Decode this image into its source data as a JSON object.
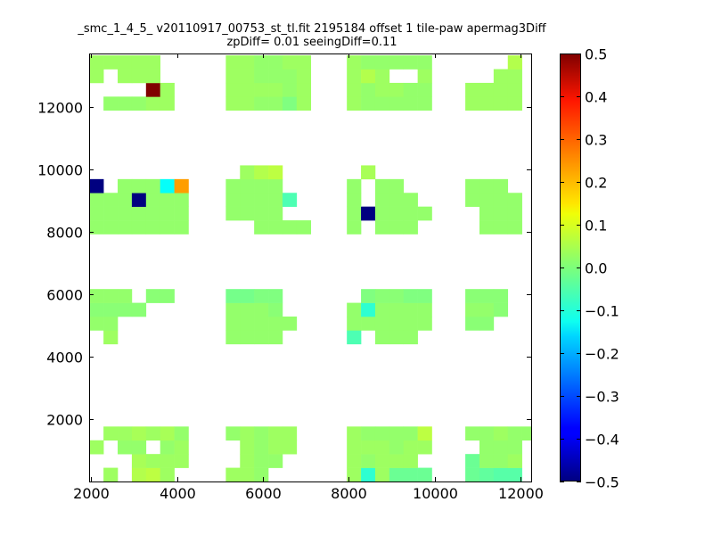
{
  "chart_data": {
    "type": "heatmap",
    "title_lines": [
      "_smc_1_4_5_ v20110917_00753_st_tl.fit 2195184 offset 1 tile-paw apermag3Diff",
      "zpDiff= 0.01 seeingDiff=0.11"
    ],
    "xlabel": "",
    "ylabel": "",
    "xlim": [
      1950,
      12250
    ],
    "ylim": [
      0,
      13700
    ],
    "xticks": [
      2000,
      4000,
      6000,
      8000,
      10000,
      12000
    ],
    "yticks": [
      2000,
      4000,
      6000,
      8000,
      10000,
      12000
    ],
    "colorbar": {
      "min": -0.5,
      "max": 0.5,
      "ticks": [
        0.5,
        0.4,
        0.3,
        0.2,
        0.1,
        0.0,
        -0.1,
        -0.2,
        -0.3,
        -0.4,
        -0.5
      ],
      "tick_labels": [
        "0.5",
        "0.4",
        "0.3",
        "0.2",
        "0.1",
        "0.0",
        "−0.1",
        "−0.2",
        "−0.3",
        "−0.4",
        "−0.5"
      ],
      "colormap": "jet"
    },
    "cell_size": [
      330,
      440
    ],
    "columns": [
      2120,
      2450,
      2780,
      3110,
      3440,
      3770,
      4100,
      5300,
      5630,
      5960,
      6290,
      6620,
      6950,
      8120,
      8450,
      8780,
      9110,
      9440,
      9770,
      10880,
      11210,
      11540,
      11870,
      12200
    ],
    "rows": [
      220,
      660,
      1100,
      1540,
      1980,
      4620,
      5060,
      5500,
      5940,
      8140,
      8580,
      9020,
      9460,
      9900,
      12100,
      12540,
      12980,
      13420
    ],
    "cells_note": "value per grid cell; rows listed bottom to top; null = no data",
    "cells": [
      [
        null,
        0.03,
        null,
        0.05,
        0.06,
        0.03,
        null,
        0.03,
        0.03,
        0.02,
        null,
        null,
        null,
        0.03,
        -0.08,
        0.03,
        -0.02,
        -0.02,
        -0.02,
        -0.02,
        -0.03,
        -0.04,
        -0.04,
        null
      ],
      [
        null,
        null,
        null,
        0.04,
        0.03,
        0.03,
        0.03,
        null,
        0.03,
        0.02,
        0.02,
        null,
        null,
        0.03,
        0.02,
        0.03,
        0.03,
        0.03,
        null,
        -0.02,
        0.02,
        0.02,
        0.03,
        null
      ],
      [
        0.03,
        null,
        0.02,
        0.02,
        null,
        0.02,
        0.03,
        null,
        0.03,
        0.02,
        0.03,
        0.03,
        null,
        0.03,
        0.03,
        0.03,
        0.02,
        0.03,
        0.03,
        null,
        0.02,
        0.02,
        0.02,
        null
      ],
      [
        null,
        0.03,
        0.03,
        0.04,
        0.03,
        0.04,
        0.02,
        0.02,
        0.03,
        0.02,
        0.03,
        0.03,
        null,
        0.03,
        0.02,
        0.02,
        0.02,
        0.02,
        0.06,
        0.02,
        0.02,
        0.03,
        0.02,
        0.02
      ],
      [
        null,
        null,
        null,
        null,
        null,
        null,
        null,
        null,
        null,
        null,
        null,
        null,
        null,
        null,
        null,
        null,
        null,
        null,
        null,
        null,
        null,
        null,
        null,
        null
      ],
      [
        null,
        0.03,
        null,
        null,
        null,
        null,
        null,
        0.02,
        0.02,
        0.02,
        0.02,
        null,
        null,
        -0.05,
        null,
        0.02,
        0.02,
        0.02,
        null,
        null,
        null,
        null,
        null,
        null
      ],
      [
        0.02,
        0.02,
        null,
        null,
        null,
        null,
        null,
        0.02,
        0.02,
        0.02,
        0.02,
        0.02,
        null,
        0.02,
        0.02,
        0.02,
        0.02,
        0.02,
        0.02,
        0.01,
        0.01,
        null,
        null,
        null
      ],
      [
        0.01,
        0.01,
        0.01,
        0.01,
        null,
        null,
        null,
        0.02,
        0.02,
        0.02,
        0.01,
        null,
        null,
        0.02,
        -0.08,
        0.02,
        0.02,
        0.02,
        0.02,
        0.02,
        0.02,
        0.01,
        null,
        null
      ],
      [
        0.02,
        0.02,
        0.02,
        null,
        0.01,
        0.01,
        null,
        -0.01,
        -0.01,
        0.0,
        0.0,
        null,
        null,
        null,
        0.0,
        0.01,
        0.01,
        0.0,
        0.0,
        0.01,
        0.01,
        0.01,
        null,
        null
      ],
      [
        0.02,
        0.02,
        0.02,
        0.02,
        0.02,
        0.02,
        0.02,
        null,
        null,
        0.02,
        0.02,
        0.02,
        0.02,
        0.02,
        null,
        0.02,
        0.02,
        0.02,
        null,
        null,
        0.02,
        0.02,
        0.02,
        null
      ],
      [
        0.02,
        0.02,
        0.02,
        0.02,
        0.02,
        0.02,
        0.02,
        0.02,
        0.02,
        0.02,
        0.02,
        null,
        null,
        0.02,
        -0.5,
        0.02,
        0.02,
        0.02,
        0.02,
        null,
        0.02,
        0.02,
        0.02,
        null
      ],
      [
        0.02,
        0.02,
        0.02,
        -0.5,
        0.02,
        0.02,
        0.02,
        0.02,
        0.02,
        0.02,
        0.02,
        -0.05,
        null,
        0.02,
        null,
        0.02,
        0.02,
        0.02,
        null,
        0.02,
        0.02,
        0.02,
        0.02,
        null
      ],
      [
        -0.5,
        null,
        0.02,
        0.02,
        0.02,
        -0.12,
        0.22,
        0.02,
        0.02,
        0.02,
        0.02,
        null,
        null,
        0.02,
        null,
        0.02,
        0.02,
        null,
        null,
        0.02,
        0.02,
        0.02,
        null,
        null
      ],
      [
        null,
        null,
        null,
        null,
        null,
        null,
        null,
        null,
        0.03,
        0.05,
        0.06,
        null,
        null,
        null,
        0.04,
        null,
        null,
        null,
        null,
        null,
        null,
        null,
        null,
        null
      ],
      [
        null,
        0.02,
        0.02,
        0.02,
        0.03,
        0.03,
        null,
        0.03,
        0.03,
        0.02,
        0.02,
        0.0,
        0.03,
        0.03,
        0.02,
        0.02,
        0.02,
        0.02,
        0.02,
        0.03,
        0.03,
        0.03,
        0.03,
        null
      ],
      [
        null,
        null,
        null,
        null,
        0.5,
        0.03,
        null,
        0.03,
        0.03,
        0.03,
        0.03,
        0.02,
        0.03,
        0.03,
        0.02,
        0.03,
        0.03,
        0.02,
        0.02,
        0.03,
        0.03,
        0.03,
        0.03,
        null
      ],
      [
        0.03,
        null,
        0.03,
        0.03,
        0.03,
        null,
        null,
        0.03,
        0.03,
        0.02,
        0.02,
        0.02,
        0.03,
        0.03,
        0.05,
        0.03,
        null,
        null,
        0.03,
        null,
        null,
        0.03,
        0.03,
        null
      ],
      [
        0.03,
        0.03,
        0.03,
        0.03,
        0.03,
        null,
        null,
        0.03,
        0.03,
        0.02,
        0.02,
        0.03,
        0.03,
        0.03,
        0.02,
        0.02,
        0.02,
        0.02,
        0.02,
        null,
        null,
        null,
        0.05,
        null
      ]
    ]
  }
}
